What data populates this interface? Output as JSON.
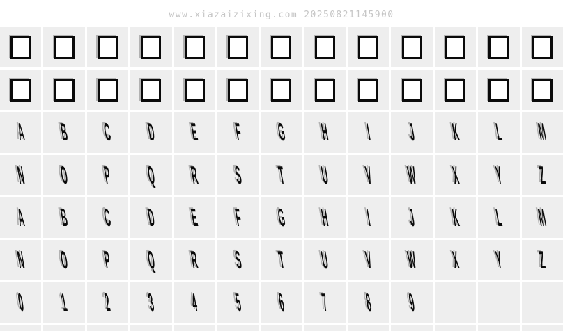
{
  "watermark": "www.xiazaizixing.com 20250821145900",
  "colors": {
    "page_bg": "#ffffff",
    "cell_bg": "#eeeeee",
    "gutter": "#ffffff",
    "glyph": "#0a0a0a",
    "glyph_shadow": "#b2b2b2",
    "notdef_border": "#0a0a0a",
    "notdef_fill": "#ffffff",
    "watermark_color": "#c6c6c6"
  },
  "grid": {
    "columns": 13,
    "rows": [
      {
        "style": "notdef",
        "cells": [
          "",
          "",
          "",
          "",
          "",
          "",
          "",
          "",
          "",
          "",
          "",
          "",
          ""
        ]
      },
      {
        "style": "notdef",
        "cells": [
          "",
          "",
          "",
          "",
          "",
          "",
          "",
          "",
          "",
          "",
          "",
          "",
          ""
        ]
      },
      {
        "style": "glyph",
        "cells": [
          "A",
          "B",
          "C",
          "D",
          "E",
          "F",
          "G",
          "H",
          "I",
          "J",
          "K",
          "L",
          "M"
        ]
      },
      {
        "style": "glyph",
        "cells": [
          "N",
          "O",
          "P",
          "Q",
          "R",
          "S",
          "T",
          "U",
          "V",
          "W",
          "X",
          "Y",
          "Z"
        ]
      },
      {
        "style": "glyph-smallcap",
        "cells": [
          "a",
          "b",
          "c",
          "d",
          "e",
          "f",
          "g",
          "h",
          "i",
          "j",
          "k",
          "l",
          "m"
        ]
      },
      {
        "style": "glyph-smallcap",
        "cells": [
          "n",
          "o",
          "p",
          "q",
          "r",
          "s",
          "t",
          "u",
          "v",
          "w",
          "x",
          "y",
          "z"
        ]
      },
      {
        "style": "glyph",
        "cells": [
          "0",
          "1",
          "2",
          "3",
          "4",
          "5",
          "6",
          "7",
          "8",
          "9",
          "",
          "",
          ""
        ]
      },
      {
        "style": "sliver",
        "cells": [
          "",
          "",
          "",
          "",
          "",
          "",
          "",
          "",
          "",
          "",
          "",
          "",
          ""
        ]
      }
    ]
  }
}
